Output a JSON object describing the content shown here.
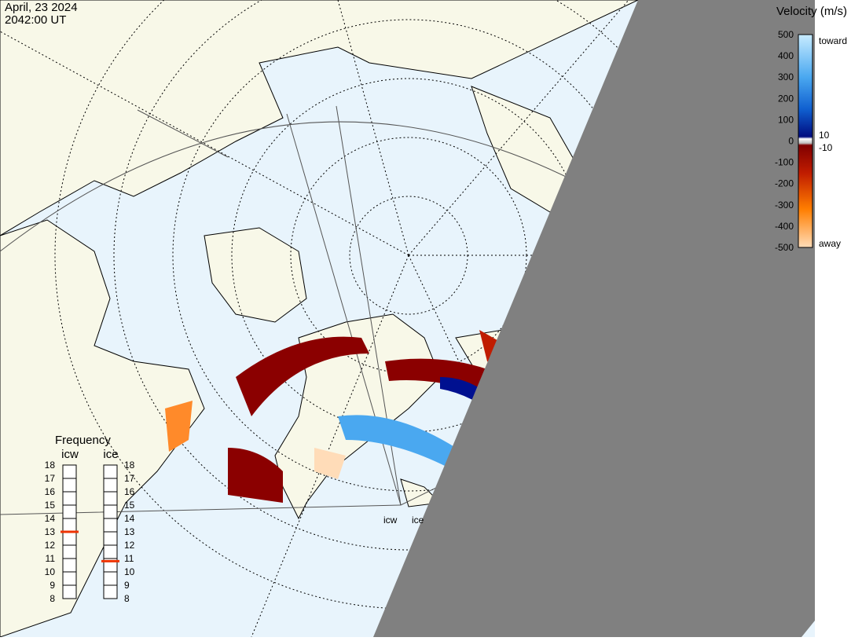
{
  "header": {
    "date": "April, 23 2024",
    "time": "2042:00 UT"
  },
  "colorbar": {
    "title": "Velocity (m/s)",
    "ticks": [
      500,
      400,
      300,
      200,
      100,
      0,
      -100,
      -200,
      -300,
      -400,
      -500
    ],
    "inner_ticks": [
      10,
      -10
    ],
    "toward": "toward",
    "away": "away"
  },
  "frequency": {
    "title": "Frequency",
    "ticks": [
      18,
      17,
      16,
      15,
      14,
      13,
      12,
      11,
      10,
      9,
      8
    ],
    "radars": [
      {
        "name": "icw",
        "value": 13
      },
      {
        "name": "ice",
        "value": 10.8
      }
    ]
  },
  "map_labels": [
    "icw",
    "ice"
  ]
}
